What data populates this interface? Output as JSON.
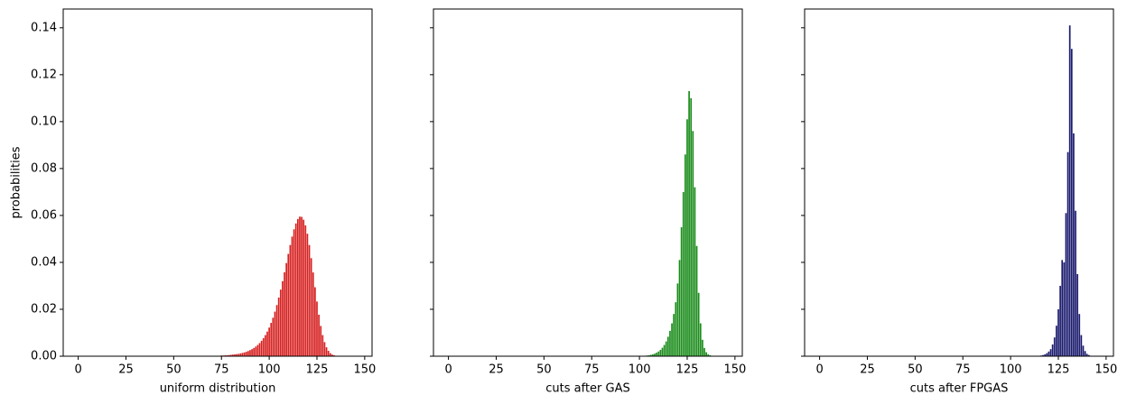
{
  "chart_data": [
    {
      "type": "bar",
      "xlabel": "uniform distribution",
      "ylabel": "probabilities",
      "color": "#d62020",
      "x": [
        75,
        76,
        77,
        78,
        79,
        80,
        81,
        82,
        83,
        84,
        85,
        86,
        87,
        88,
        89,
        90,
        91,
        92,
        93,
        94,
        95,
        96,
        97,
        98,
        99,
        100,
        101,
        102,
        103,
        104,
        105,
        106,
        107,
        108,
        109,
        110,
        111,
        112,
        113,
        114,
        115,
        116,
        117,
        118,
        119,
        120,
        121,
        122,
        123,
        124,
        125,
        126,
        127,
        128,
        129,
        130,
        131,
        132,
        133,
        134,
        135,
        136,
        137
      ],
      "values": [
        0.0003,
        0.0003,
        0.0004,
        0.0004,
        0.0005,
        0.0006,
        0.0007,
        0.0008,
        0.0009,
        0.001,
        0.0012,
        0.0014,
        0.0016,
        0.0019,
        0.0022,
        0.0026,
        0.003,
        0.0035,
        0.0041,
        0.0048,
        0.0056,
        0.0066,
        0.0077,
        0.009,
        0.0105,
        0.0122,
        0.0142,
        0.0164,
        0.019,
        0.0218,
        0.025,
        0.0284,
        0.032,
        0.0358,
        0.0397,
        0.0436,
        0.0474,
        0.051,
        0.0541,
        0.0566,
        0.0585,
        0.0595,
        0.0594,
        0.0582,
        0.0558,
        0.0522,
        0.0474,
        0.0418,
        0.0357,
        0.0294,
        0.0233,
        0.0177,
        0.0129,
        0.009,
        0.006,
        0.0038,
        0.0023,
        0.0013,
        0.0007,
        0.0004,
        0.0002,
        0.0001,
        0.0001
      ],
      "xlim": [
        -7.85,
        153.85
      ],
      "xticks": [
        0,
        25,
        50,
        75,
        100,
        125,
        150
      ],
      "ylim": [
        0,
        0.148
      ],
      "yticks": [
        {
          "value": 0,
          "label": "0.00"
        },
        {
          "value": 0.02,
          "label": "0.02"
        },
        {
          "value": 0.04,
          "label": "0.04"
        },
        {
          "value": 0.06,
          "label": "0.06"
        },
        {
          "value": 0.08,
          "label": "0.08"
        },
        {
          "value": 0.1,
          "label": "0.10"
        },
        {
          "value": 0.12,
          "label": "0.12"
        },
        {
          "value": 0.14,
          "label": "0.14"
        }
      ]
    },
    {
      "type": "bar",
      "xlabel": "cuts after GAS",
      "color": "#1a8c1a",
      "sharey": true,
      "x": [
        103,
        104,
        105,
        106,
        107,
        108,
        109,
        110,
        111,
        112,
        113,
        114,
        115,
        116,
        117,
        118,
        119,
        120,
        121,
        122,
        123,
        124,
        125,
        126,
        127,
        128,
        129,
        130,
        131,
        132,
        133,
        134,
        135,
        136,
        137,
        138,
        139
      ],
      "values": [
        0.0002,
        0.0003,
        0.0004,
        0.0006,
        0.0008,
        0.0011,
        0.0015,
        0.002,
        0.0027,
        0.0036,
        0.0048,
        0.0063,
        0.0083,
        0.0108,
        0.014,
        0.018,
        0.023,
        0.031,
        0.041,
        0.055,
        0.07,
        0.086,
        0.101,
        0.113,
        0.11,
        0.096,
        0.072,
        0.047,
        0.027,
        0.014,
        0.007,
        0.0035,
        0.0017,
        0.0008,
        0.0004,
        0.0002,
        0.0001
      ],
      "xlim": [
        -7.85,
        153.85
      ],
      "xticks": [
        0,
        25,
        50,
        75,
        100,
        125,
        150
      ],
      "ylim": [
        0,
        0.148
      ],
      "yticks": [
        0,
        0.02,
        0.04,
        0.06,
        0.08,
        0.1,
        0.12,
        0.14
      ]
    },
    {
      "type": "bar",
      "xlabel": "cuts after FPGAS",
      "color": "#1a1a6e",
      "sharey": true,
      "x": [
        115,
        116,
        117,
        118,
        119,
        120,
        121,
        122,
        123,
        124,
        125,
        126,
        127,
        128,
        129,
        130,
        131,
        132,
        133,
        134,
        135,
        136,
        137,
        138,
        139,
        140,
        141,
        142,
        143
      ],
      "values": [
        0.0002,
        0.0003,
        0.0005,
        0.0008,
        0.0013,
        0.002,
        0.003,
        0.005,
        0.008,
        0.013,
        0.02,
        0.03,
        0.041,
        0.04,
        0.061,
        0.087,
        0.141,
        0.131,
        0.095,
        0.062,
        0.035,
        0.018,
        0.009,
        0.0045,
        0.0022,
        0.001,
        0.0005,
        0.0002,
        0.0001
      ],
      "xlim": [
        -7.85,
        153.85
      ],
      "xticks": [
        0,
        25,
        50,
        75,
        100,
        125,
        150
      ],
      "ylim": [
        0,
        0.148
      ],
      "yticks": [
        0,
        0.02,
        0.04,
        0.06,
        0.08,
        0.1,
        0.12,
        0.14
      ]
    }
  ]
}
